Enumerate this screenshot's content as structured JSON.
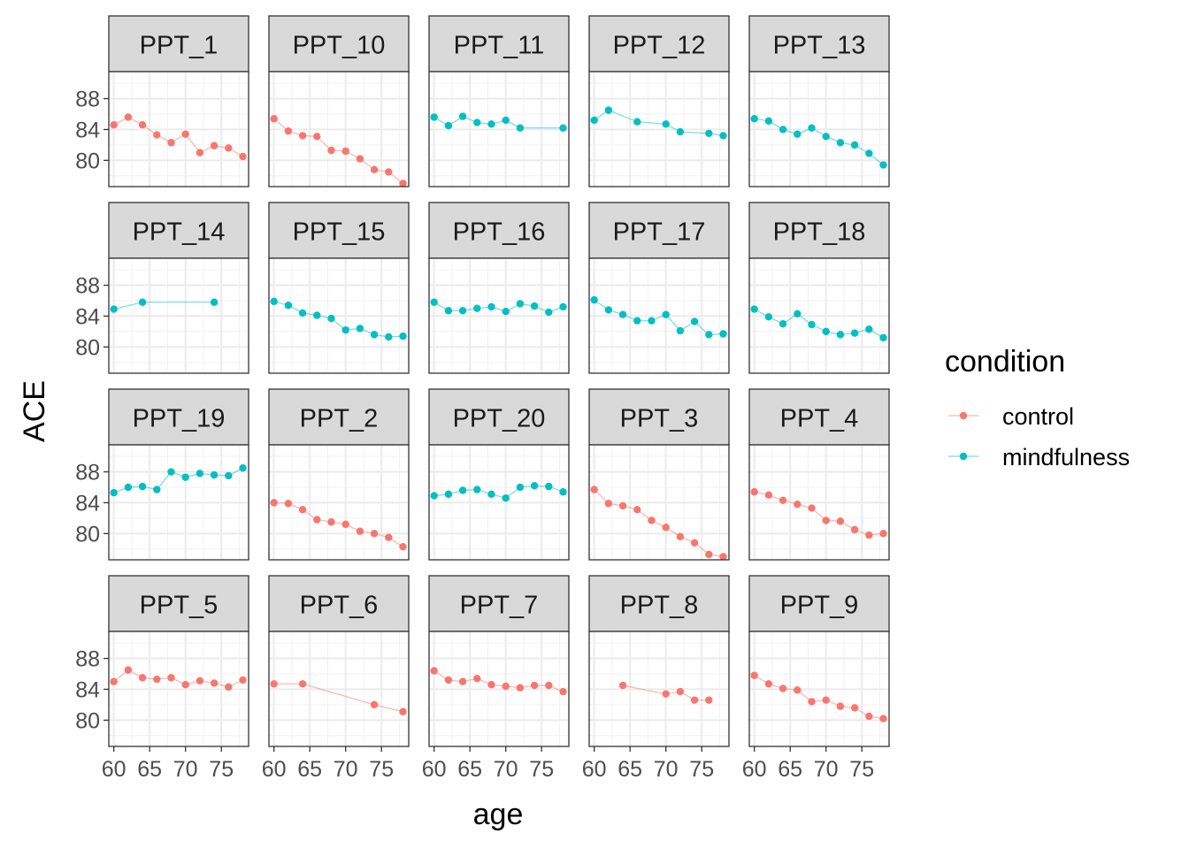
{
  "chart_data": {
    "type": "line",
    "xlabel": "age",
    "ylabel": "ACE",
    "x_ticks": [
      60,
      65,
      70,
      75
    ],
    "y_ticks": [
      80,
      84,
      88
    ],
    "x_tick_labels": [
      "60",
      "65",
      "70",
      "75"
    ],
    "y_tick_labels": [
      "80",
      "84",
      "88"
    ],
    "xlim": [
      59.3,
      78.8
    ],
    "ylim": [
      76.6,
      91.5
    ],
    "grid": true,
    "legend_title": "condition",
    "legend_position": "right",
    "legend_entries": [
      {
        "name": "control",
        "color": "#F8766D"
      },
      {
        "name": "mindfulness",
        "color": "#00BFC4"
      }
    ],
    "panels": [
      {
        "title": "PPT_1",
        "condition": "control",
        "x": [
          60,
          62,
          64,
          66,
          68,
          70,
          72,
          74,
          76,
          78
        ],
        "y": [
          84.6,
          85.6,
          84.6,
          83.3,
          82.3,
          83.4,
          81.0,
          81.9,
          81.6,
          80.5
        ]
      },
      {
        "title": "PPT_10",
        "condition": "control",
        "x": [
          60,
          62,
          64,
          66,
          68,
          70,
          72,
          74,
          76,
          78
        ],
        "y": [
          85.4,
          83.8,
          83.2,
          83.1,
          81.3,
          81.2,
          80.2,
          78.8,
          78.5,
          77.0
        ]
      },
      {
        "title": "PPT_11",
        "condition": "mindfulness",
        "x": [
          60,
          62,
          64,
          66,
          68,
          70,
          72,
          78
        ],
        "y": [
          85.6,
          84.5,
          85.7,
          84.9,
          84.7,
          85.2,
          84.2,
          84.2
        ]
      },
      {
        "title": "PPT_12",
        "condition": "mindfulness",
        "x": [
          60,
          62,
          66,
          70,
          72,
          76,
          78
        ],
        "y": [
          85.2,
          86.5,
          85.0,
          84.7,
          83.7,
          83.5,
          83.2
        ]
      },
      {
        "title": "PPT_13",
        "condition": "mindfulness",
        "x": [
          60,
          62,
          64,
          66,
          68,
          70,
          72,
          74,
          76,
          78
        ],
        "y": [
          85.4,
          85.1,
          84.0,
          83.4,
          84.2,
          83.1,
          82.3,
          82.0,
          80.9,
          79.4
        ]
      },
      {
        "title": "PPT_14",
        "condition": "mindfulness",
        "x": [
          60,
          64,
          74
        ],
        "y": [
          84.9,
          85.8,
          85.8
        ]
      },
      {
        "title": "PPT_15",
        "condition": "mindfulness",
        "x": [
          60,
          62,
          64,
          66,
          68,
          70,
          72,
          74,
          76,
          78
        ],
        "y": [
          85.9,
          85.4,
          84.4,
          84.1,
          83.7,
          82.2,
          82.4,
          81.6,
          81.3,
          81.4
        ]
      },
      {
        "title": "PPT_16",
        "condition": "mindfulness",
        "x": [
          60,
          62,
          64,
          66,
          68,
          70,
          72,
          74,
          76,
          78
        ],
        "y": [
          85.8,
          84.7,
          84.7,
          85.0,
          85.2,
          84.6,
          85.6,
          85.3,
          84.5,
          85.2
        ]
      },
      {
        "title": "PPT_17",
        "condition": "mindfulness",
        "x": [
          60,
          62,
          64,
          66,
          68,
          70,
          72,
          74,
          76,
          78
        ],
        "y": [
          86.1,
          84.8,
          84.2,
          83.4,
          83.4,
          84.2,
          82.1,
          83.3,
          81.6,
          81.7
        ]
      },
      {
        "title": "PPT_18",
        "condition": "mindfulness",
        "x": [
          60,
          62,
          64,
          66,
          68,
          70,
          72,
          74,
          76,
          78
        ],
        "y": [
          84.9,
          83.9,
          83.0,
          84.3,
          82.9,
          82.0,
          81.6,
          81.8,
          82.3,
          81.2
        ]
      },
      {
        "title": "PPT_19",
        "condition": "mindfulness",
        "x": [
          60,
          62,
          64,
          66,
          68,
          70,
          72,
          74,
          76,
          78
        ],
        "y": [
          85.3,
          86.0,
          86.1,
          85.7,
          88.0,
          87.3,
          87.8,
          87.6,
          87.5,
          88.5
        ]
      },
      {
        "title": "PPT_2",
        "condition": "control",
        "x": [
          60,
          62,
          64,
          66,
          68,
          70,
          72,
          74,
          76,
          78
        ],
        "y": [
          84.0,
          83.9,
          83.1,
          81.8,
          81.5,
          81.2,
          80.3,
          80.0,
          79.5,
          78.3
        ]
      },
      {
        "title": "PPT_20",
        "condition": "mindfulness",
        "x": [
          60,
          62,
          64,
          66,
          68,
          70,
          72,
          74,
          76,
          78
        ],
        "y": [
          84.9,
          85.1,
          85.6,
          85.7,
          85.1,
          84.6,
          86.0,
          86.2,
          86.1,
          85.4
        ]
      },
      {
        "title": "PPT_3",
        "condition": "control",
        "x": [
          60,
          62,
          64,
          66,
          68,
          70,
          72,
          74,
          76,
          78
        ],
        "y": [
          85.7,
          83.9,
          83.6,
          83.1,
          81.7,
          80.8,
          79.6,
          78.8,
          77.3,
          77.0
        ]
      },
      {
        "title": "PPT_4",
        "condition": "control",
        "x": [
          60,
          62,
          64,
          66,
          68,
          70,
          72,
          74,
          76,
          78
        ],
        "y": [
          85.4,
          85.0,
          84.3,
          83.8,
          83.3,
          81.7,
          81.6,
          80.5,
          79.8,
          80.0
        ]
      },
      {
        "title": "PPT_5",
        "condition": "control",
        "x": [
          60,
          62,
          64,
          66,
          68,
          70,
          72,
          74,
          76,
          78
        ],
        "y": [
          85.0,
          86.5,
          85.5,
          85.3,
          85.5,
          84.6,
          85.1,
          84.8,
          84.3,
          85.2
        ]
      },
      {
        "title": "PPT_6",
        "condition": "control",
        "x": [
          60,
          64,
          74,
          78
        ],
        "y": [
          84.7,
          84.7,
          82.0,
          81.1
        ]
      },
      {
        "title": "PPT_7",
        "condition": "control",
        "x": [
          60,
          62,
          64,
          66,
          68,
          70,
          72,
          74,
          76,
          78
        ],
        "y": [
          86.4,
          85.2,
          85.0,
          85.4,
          84.6,
          84.4,
          84.2,
          84.5,
          84.5,
          83.7
        ]
      },
      {
        "title": "PPT_8",
        "condition": "control",
        "x": [
          64,
          70,
          72,
          74,
          76
        ],
        "y": [
          84.5,
          83.4,
          83.7,
          82.6,
          82.6
        ]
      },
      {
        "title": "PPT_9",
        "condition": "control",
        "x": [
          60,
          62,
          64,
          66,
          68,
          70,
          72,
          74,
          76,
          78
        ],
        "y": [
          85.8,
          84.7,
          84.1,
          83.9,
          82.4,
          82.6,
          81.8,
          81.6,
          80.5,
          80.2
        ]
      }
    ]
  }
}
